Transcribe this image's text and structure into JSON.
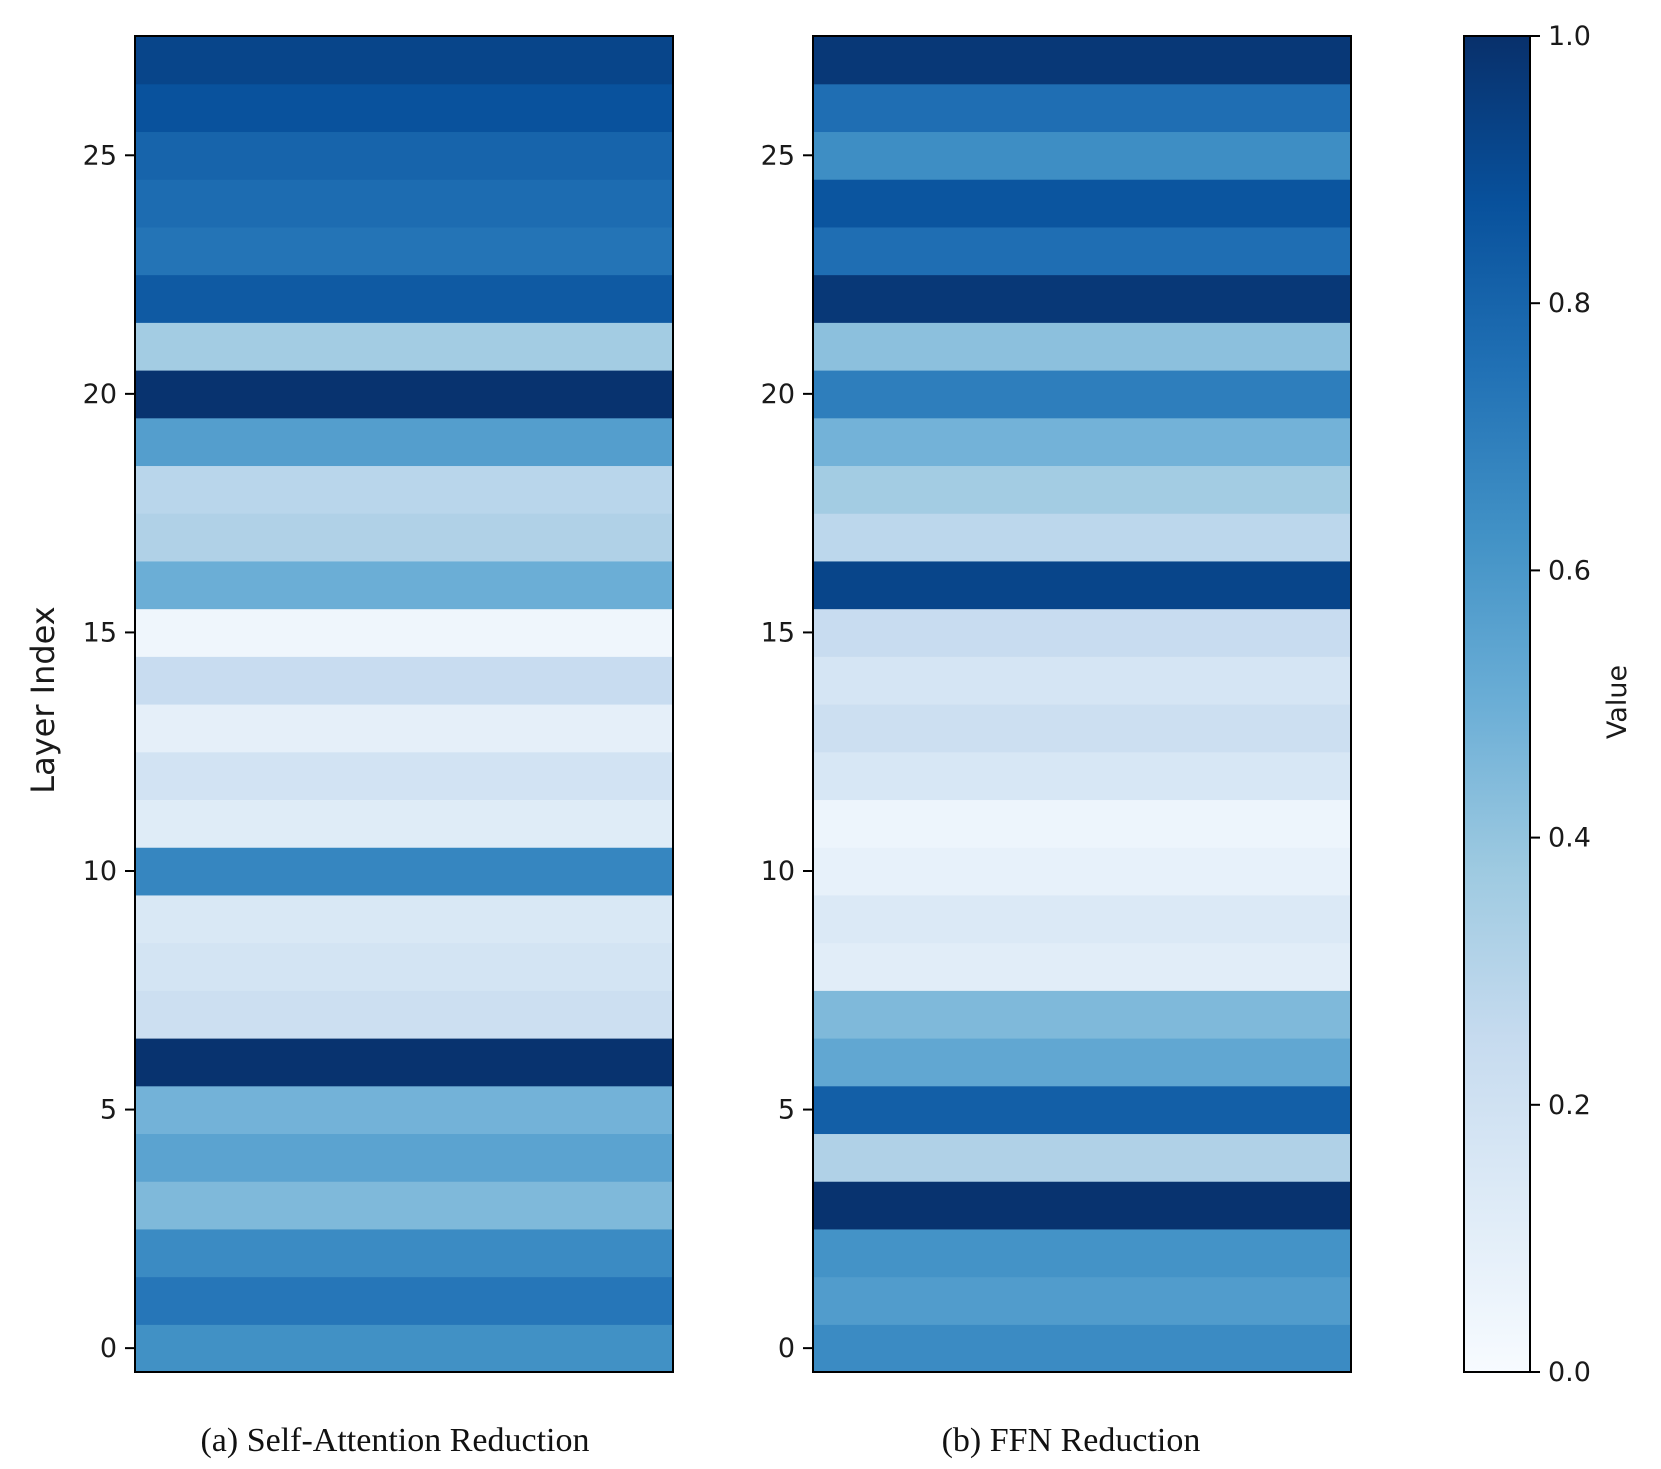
{
  "chart_data": [
    {
      "type": "heatmap",
      "caption": "(a) Self-Attention Reduction",
      "ylabel": "Layer Index",
      "y_ticks": [
        0,
        5,
        10,
        15,
        20,
        25
      ],
      "y_tick_labels": [
        "0",
        "5",
        "10",
        "15",
        "20",
        "25"
      ],
      "layers": [
        0,
        1,
        2,
        3,
        4,
        5,
        6,
        7,
        8,
        9,
        10,
        11,
        12,
        13,
        14,
        15,
        16,
        17,
        18,
        19,
        20,
        21,
        22,
        23,
        24,
        25,
        26,
        27
      ],
      "values": [
        0.63,
        0.73,
        0.65,
        0.45,
        0.55,
        0.48,
        0.99,
        0.22,
        0.18,
        0.15,
        0.67,
        0.12,
        0.19,
        0.09,
        0.24,
        0.04,
        0.5,
        0.32,
        0.29,
        0.57,
        0.99,
        0.36,
        0.84,
        0.74,
        0.77,
        0.8,
        0.87,
        0.92
      ]
    },
    {
      "type": "heatmap",
      "caption": "(b) FFN Reduction",
      "y_ticks": [
        0,
        5,
        10,
        15,
        20,
        25
      ],
      "y_tick_labels": [
        "0",
        "5",
        "10",
        "15",
        "20",
        "25"
      ],
      "layers": [
        0,
        1,
        2,
        3,
        4,
        5,
        6,
        7,
        8,
        9,
        10,
        11,
        12,
        13,
        14,
        15,
        16,
        17,
        18,
        19,
        20,
        21,
        22,
        23,
        24,
        25,
        26,
        27
      ],
      "values": [
        0.65,
        0.58,
        0.62,
        0.99,
        0.32,
        0.82,
        0.53,
        0.45,
        0.11,
        0.14,
        0.08,
        0.05,
        0.16,
        0.22,
        0.17,
        0.24,
        0.92,
        0.28,
        0.36,
        0.48,
        0.7,
        0.42,
        0.97,
        0.76,
        0.86,
        0.64,
        0.76,
        0.97
      ]
    }
  ],
  "colorbar": {
    "label": "Value",
    "ticks": [
      0.0,
      0.2,
      0.4,
      0.6,
      0.8,
      1.0
    ],
    "tick_labels": [
      "0.0",
      "0.2",
      "0.4",
      "0.6",
      "0.8",
      "1.0"
    ],
    "colormap": "Blues"
  },
  "colors": {
    "blues_stops": [
      "#f7fbff",
      "#deebf7",
      "#c6dbef",
      "#9ecae1",
      "#6baed6",
      "#4292c6",
      "#2171b5",
      "#08519c",
      "#08306b"
    ],
    "frame": "#000000"
  }
}
